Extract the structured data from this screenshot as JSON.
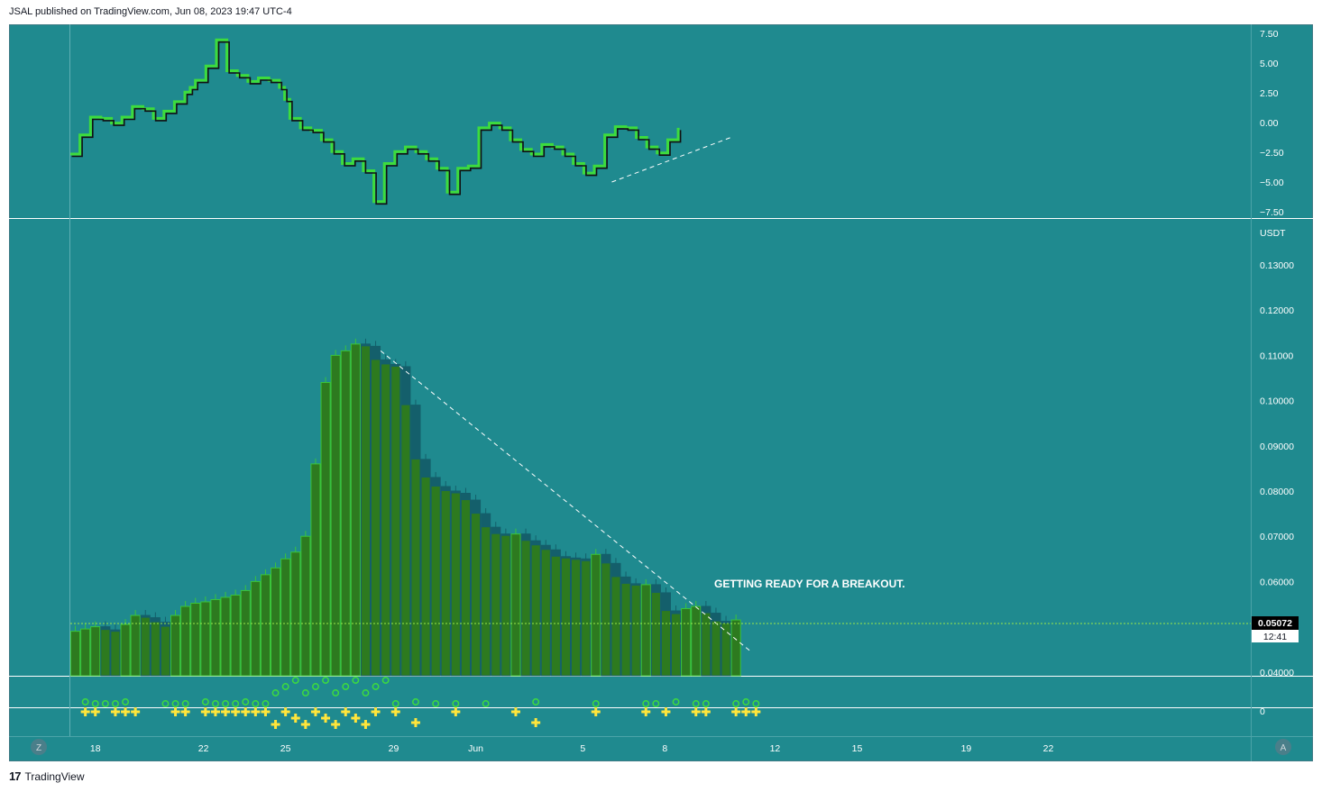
{
  "publisher_line": "JSAL published on TradingView.com, Jun 08, 2023 19:47 UTC-4",
  "brand": {
    "logo_text": "TradingView",
    "logo_mark": "17"
  },
  "theme": {
    "background": "#1f8a8f",
    "candle_up": "#3ac43a",
    "candle_body": "#2d7a1f",
    "candle_down": "#145f6b",
    "osc_green": "#3ddc3d",
    "osc_black": "#111111",
    "marker_yellow": "#ffe53b",
    "marker_green": "#3ddc3d",
    "trendline": "#ffffff",
    "price_line": "#9be84a"
  },
  "corner_buttons": {
    "left": "Z",
    "right": "A"
  },
  "annotation": "GETTING READY FOR A BREAKOUT.",
  "chart_data": [
    {
      "type": "line",
      "pane": "oscillator",
      "yaxis_ticks": [
        "7.50",
        "5.00",
        "2.50",
        "0.00",
        "−2.50",
        "−5.00",
        "−7.50"
      ],
      "ylim": [
        -7.8,
        7.8
      ],
      "x": [
        0,
        2,
        4,
        6,
        8,
        10,
        12,
        14,
        16,
        18,
        20,
        22,
        23,
        24,
        26,
        28,
        30,
        32,
        34,
        36,
        38,
        40,
        41,
        42,
        44,
        46,
        48,
        50,
        52,
        54,
        56,
        58,
        60,
        62,
        64,
        66,
        68,
        70,
        72,
        74,
        76,
        78,
        80,
        82,
        84,
        86,
        88,
        90,
        92,
        94,
        96,
        98,
        100,
        102,
        104,
        106,
        108,
        110,
        112,
        114,
        116,
        118,
        120,
        122,
        124,
        126
      ],
      "values": [
        -2.8,
        -1.2,
        0.3,
        0.2,
        -0.2,
        0.3,
        1.2,
        1.0,
        0.2,
        0.8,
        1.6,
        2.4,
        2.8,
        3.4,
        4.6,
        6.8,
        4.2,
        3.8,
        3.3,
        3.6,
        3.4,
        2.8,
        1.8,
        0.2,
        -0.6,
        -0.8,
        -1.6,
        -2.6,
        -3.6,
        -3.2,
        -4.2,
        -6.8,
        -3.6,
        -2.6,
        -2.2,
        -2.6,
        -3.2,
        -4.0,
        -6.0,
        -4.0,
        -3.8,
        -0.6,
        -0.2,
        -0.6,
        -1.6,
        -2.4,
        -2.8,
        -2.0,
        -2.2,
        -2.8,
        -3.6,
        -4.4,
        -3.8,
        -1.2,
        -0.5,
        -0.6,
        -1.4,
        -2.2,
        -2.7,
        -1.6,
        -0.6,
        null,
        null,
        null,
        null,
        null
      ],
      "trendline": {
        "from": [
          103,
          -5.0
        ],
        "to": [
          126,
          -1.2
        ]
      }
    },
    {
      "type": "candlestick",
      "pane": "price",
      "currency": "USDT",
      "yaxis_ticks": [
        "0.13000",
        "0.12000",
        "0.11000",
        "0.10000",
        "0.09000",
        "0.08000",
        "0.07000",
        "0.06000",
        "0.04000"
      ],
      "ylim": [
        0.039,
        0.1358
      ],
      "last_price": "0.05072",
      "countdown": "12:41",
      "close": [
        0.049,
        0.0495,
        0.05,
        0.0493,
        0.049,
        0.0505,
        0.0525,
        0.052,
        0.051,
        0.05,
        0.0525,
        0.0545,
        0.0552,
        0.0555,
        0.056,
        0.0565,
        0.057,
        0.058,
        0.06,
        0.0615,
        0.063,
        0.065,
        0.0665,
        0.07,
        0.086,
        0.104,
        0.11,
        0.111,
        0.1125,
        0.112,
        0.109,
        0.108,
        0.1075,
        0.099,
        0.087,
        0.083,
        0.081,
        0.08,
        0.0795,
        0.078,
        0.075,
        0.072,
        0.0705,
        0.0702,
        0.0705,
        0.069,
        0.068,
        0.067,
        0.0655,
        0.0652,
        0.065,
        0.0645,
        0.066,
        0.064,
        0.061,
        0.0595,
        0.0592,
        0.0593,
        0.0575,
        0.0535,
        0.0528,
        0.054,
        0.0545,
        0.053,
        0.0512,
        0.0507,
        0.0515
      ],
      "trendline": {
        "from": [
          31,
          0.111
        ],
        "to": [
          68,
          0.0445
        ]
      },
      "price_line": 0.05072
    },
    {
      "type": "scatter",
      "pane": "signals",
      "zero_label": "0",
      "markers": {
        "yellow_cross_slots": [
          1,
          2,
          4,
          5,
          6,
          10,
          11,
          13,
          14,
          15,
          16,
          17,
          18,
          19,
          20,
          21,
          22,
          23,
          24,
          25,
          26,
          27,
          28,
          29,
          30,
          32,
          34,
          38,
          44,
          46,
          52,
          57,
          59,
          62,
          63,
          66,
          67,
          68
        ],
        "green_circle_slots": [
          1,
          2,
          3,
          4,
          5,
          9,
          10,
          11,
          13,
          14,
          15,
          16,
          17,
          18,
          19,
          20,
          21,
          22,
          23,
          24,
          25,
          26,
          27,
          28,
          29,
          30,
          31,
          32,
          34,
          36,
          38,
          41,
          46,
          52,
          57,
          58,
          60,
          62,
          63,
          66,
          67,
          68
        ]
      }
    }
  ],
  "x_axis_ticks": [
    {
      "label": "18",
      "slot": 2.5
    },
    {
      "label": "22",
      "slot": 13.3
    },
    {
      "label": "25",
      "slot": 21.5
    },
    {
      "label": "29",
      "slot": 32.3
    },
    {
      "label": "Jun",
      "slot": 40.5
    },
    {
      "label": "5",
      "slot": 51.2
    },
    {
      "label": "8",
      "slot": 59.4
    },
    {
      "label": "12",
      "slot": 70.4
    },
    {
      "label": "15",
      "slot": 78.6
    },
    {
      "label": "19",
      "slot": 89.5
    },
    {
      "label": "22",
      "slot": 97.7
    }
  ]
}
